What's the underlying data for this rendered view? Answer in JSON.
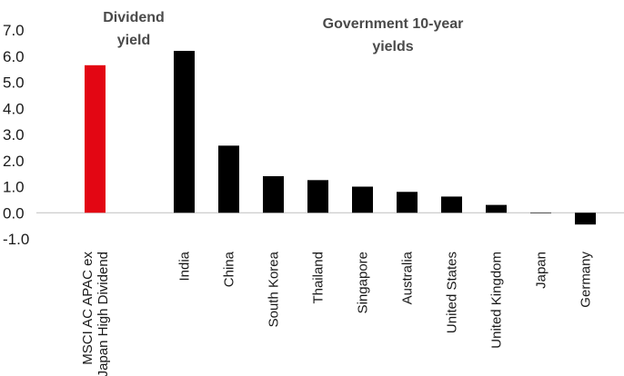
{
  "chart_data": {
    "type": "bar",
    "title": "",
    "xlabel": "",
    "ylabel": "",
    "ylim": [
      -1.0,
      7.0
    ],
    "yticks": [
      "7.0",
      "6.0",
      "5.0",
      "4.0",
      "3.0",
      "2.0",
      "1.0",
      "0.0",
      "-1.0"
    ],
    "ytick_values": [
      7,
      6,
      5,
      4,
      3,
      2,
      1,
      0,
      -1
    ],
    "grid": false,
    "legend": "none",
    "categories": [
      {
        "label_lines": [
          "MSCI AC APAC ex",
          "Japan High Dividend"
        ]
      },
      {
        "label_lines": [
          "India"
        ]
      },
      {
        "label_lines": [
          "China"
        ]
      },
      {
        "label_lines": [
          "South Korea"
        ]
      },
      {
        "label_lines": [
          "Thailand"
        ]
      },
      {
        "label_lines": [
          "Singapore"
        ]
      },
      {
        "label_lines": [
          "Australia"
        ]
      },
      {
        "label_lines": [
          "United States"
        ]
      },
      {
        "label_lines": [
          "United Kingdom"
        ]
      },
      {
        "label_lines": [
          "Japan"
        ]
      },
      {
        "label_lines": [
          "Germany"
        ]
      }
    ],
    "category_slots": [
      0,
      2,
      3,
      4,
      5,
      6,
      7,
      8,
      9,
      10,
      11
    ],
    "values": [
      5.65,
      6.2,
      2.57,
      1.4,
      1.25,
      1.0,
      0.8,
      0.62,
      0.3,
      -0.02,
      -0.45
    ],
    "bar_colors": [
      "#e30613",
      "#000000",
      "#000000",
      "#000000",
      "#000000",
      "#000000",
      "#000000",
      "#000000",
      "#000000",
      "#000000",
      "#000000"
    ],
    "annotations": [
      {
        "lines": [
          "Dividend",
          "yield"
        ]
      },
      {
        "lines": [
          "Government 10-year",
          "yields"
        ]
      }
    ]
  },
  "colors": {
    "highlight": "#e30613",
    "bar": "#000000",
    "axis": "#bfbfbf",
    "annotation": "#4a4a4a"
  }
}
